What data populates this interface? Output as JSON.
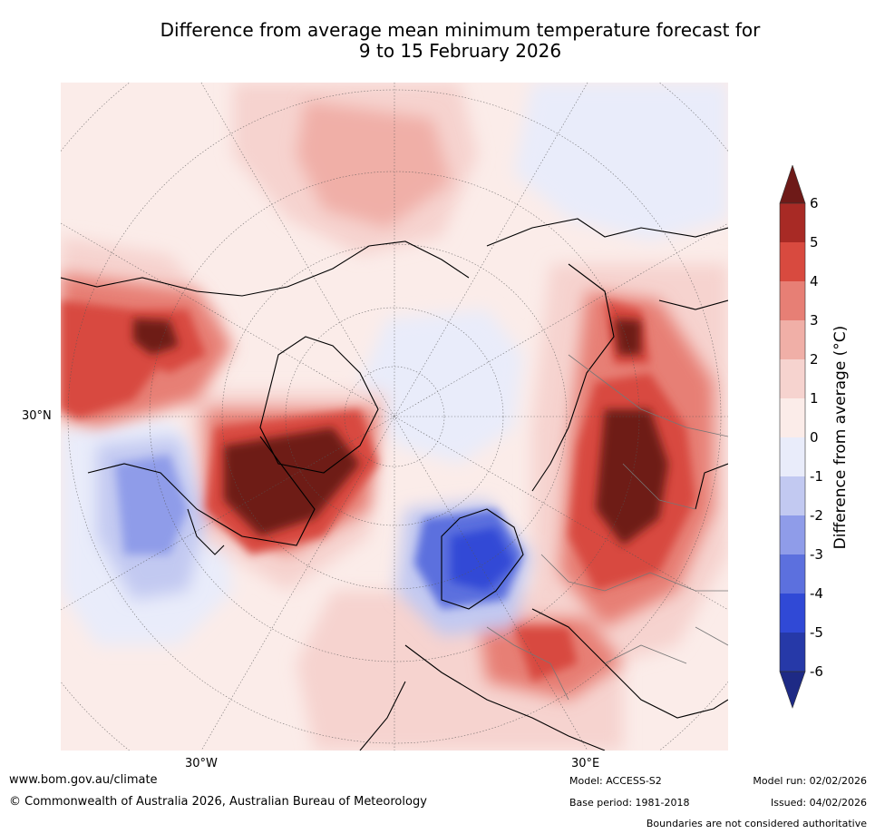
{
  "title": {
    "line1": "Difference from average mean minimum temperature forecast for",
    "line2": "9 to 15 February 2026"
  },
  "map": {
    "projection": "north polar stereographic",
    "lat_labels": [
      "30°N"
    ],
    "lon_labels": [
      "30°W",
      "30°E"
    ]
  },
  "colorbar": {
    "label": "Difference from average (°C)",
    "ticks": [
      "6",
      "5",
      "4",
      "3",
      "2",
      "1",
      "0",
      "-1",
      "-2",
      "-3",
      "-4",
      "-5",
      "-6"
    ],
    "colors": {
      "above_6": "#6e1a18",
      "5_to_6": "#a82a25",
      "4_to_5": "#d84a3f",
      "3_to_4": "#e77f75",
      "2_to_3": "#f0afa7",
      "1_to_2": "#f6d3cf",
      "0_to_1": "#fbece9",
      "m1_to_0": "#e9ecfa",
      "m2_to_m1": "#c2c9f1",
      "m3_to_m2": "#8f9ce9",
      "m4_to_m3": "#5c70de",
      "m5_to_m4": "#3049d6",
      "m6_to_m5": "#2639a8",
      "below_m6": "#1e2a85"
    }
  },
  "footer": {
    "url": "www.bom.gov.au/climate",
    "copyright": "© Commonwealth of Australia 2026, Australian Bureau of Meteorology",
    "model": "Model: ACCESS-S2",
    "base_period": "Base period: 1981-2018",
    "model_run": "Model run: 02/02/2026",
    "issued": "Issued: 04/02/2026",
    "disclaimer": "Boundaries are not considered authoritative"
  }
}
